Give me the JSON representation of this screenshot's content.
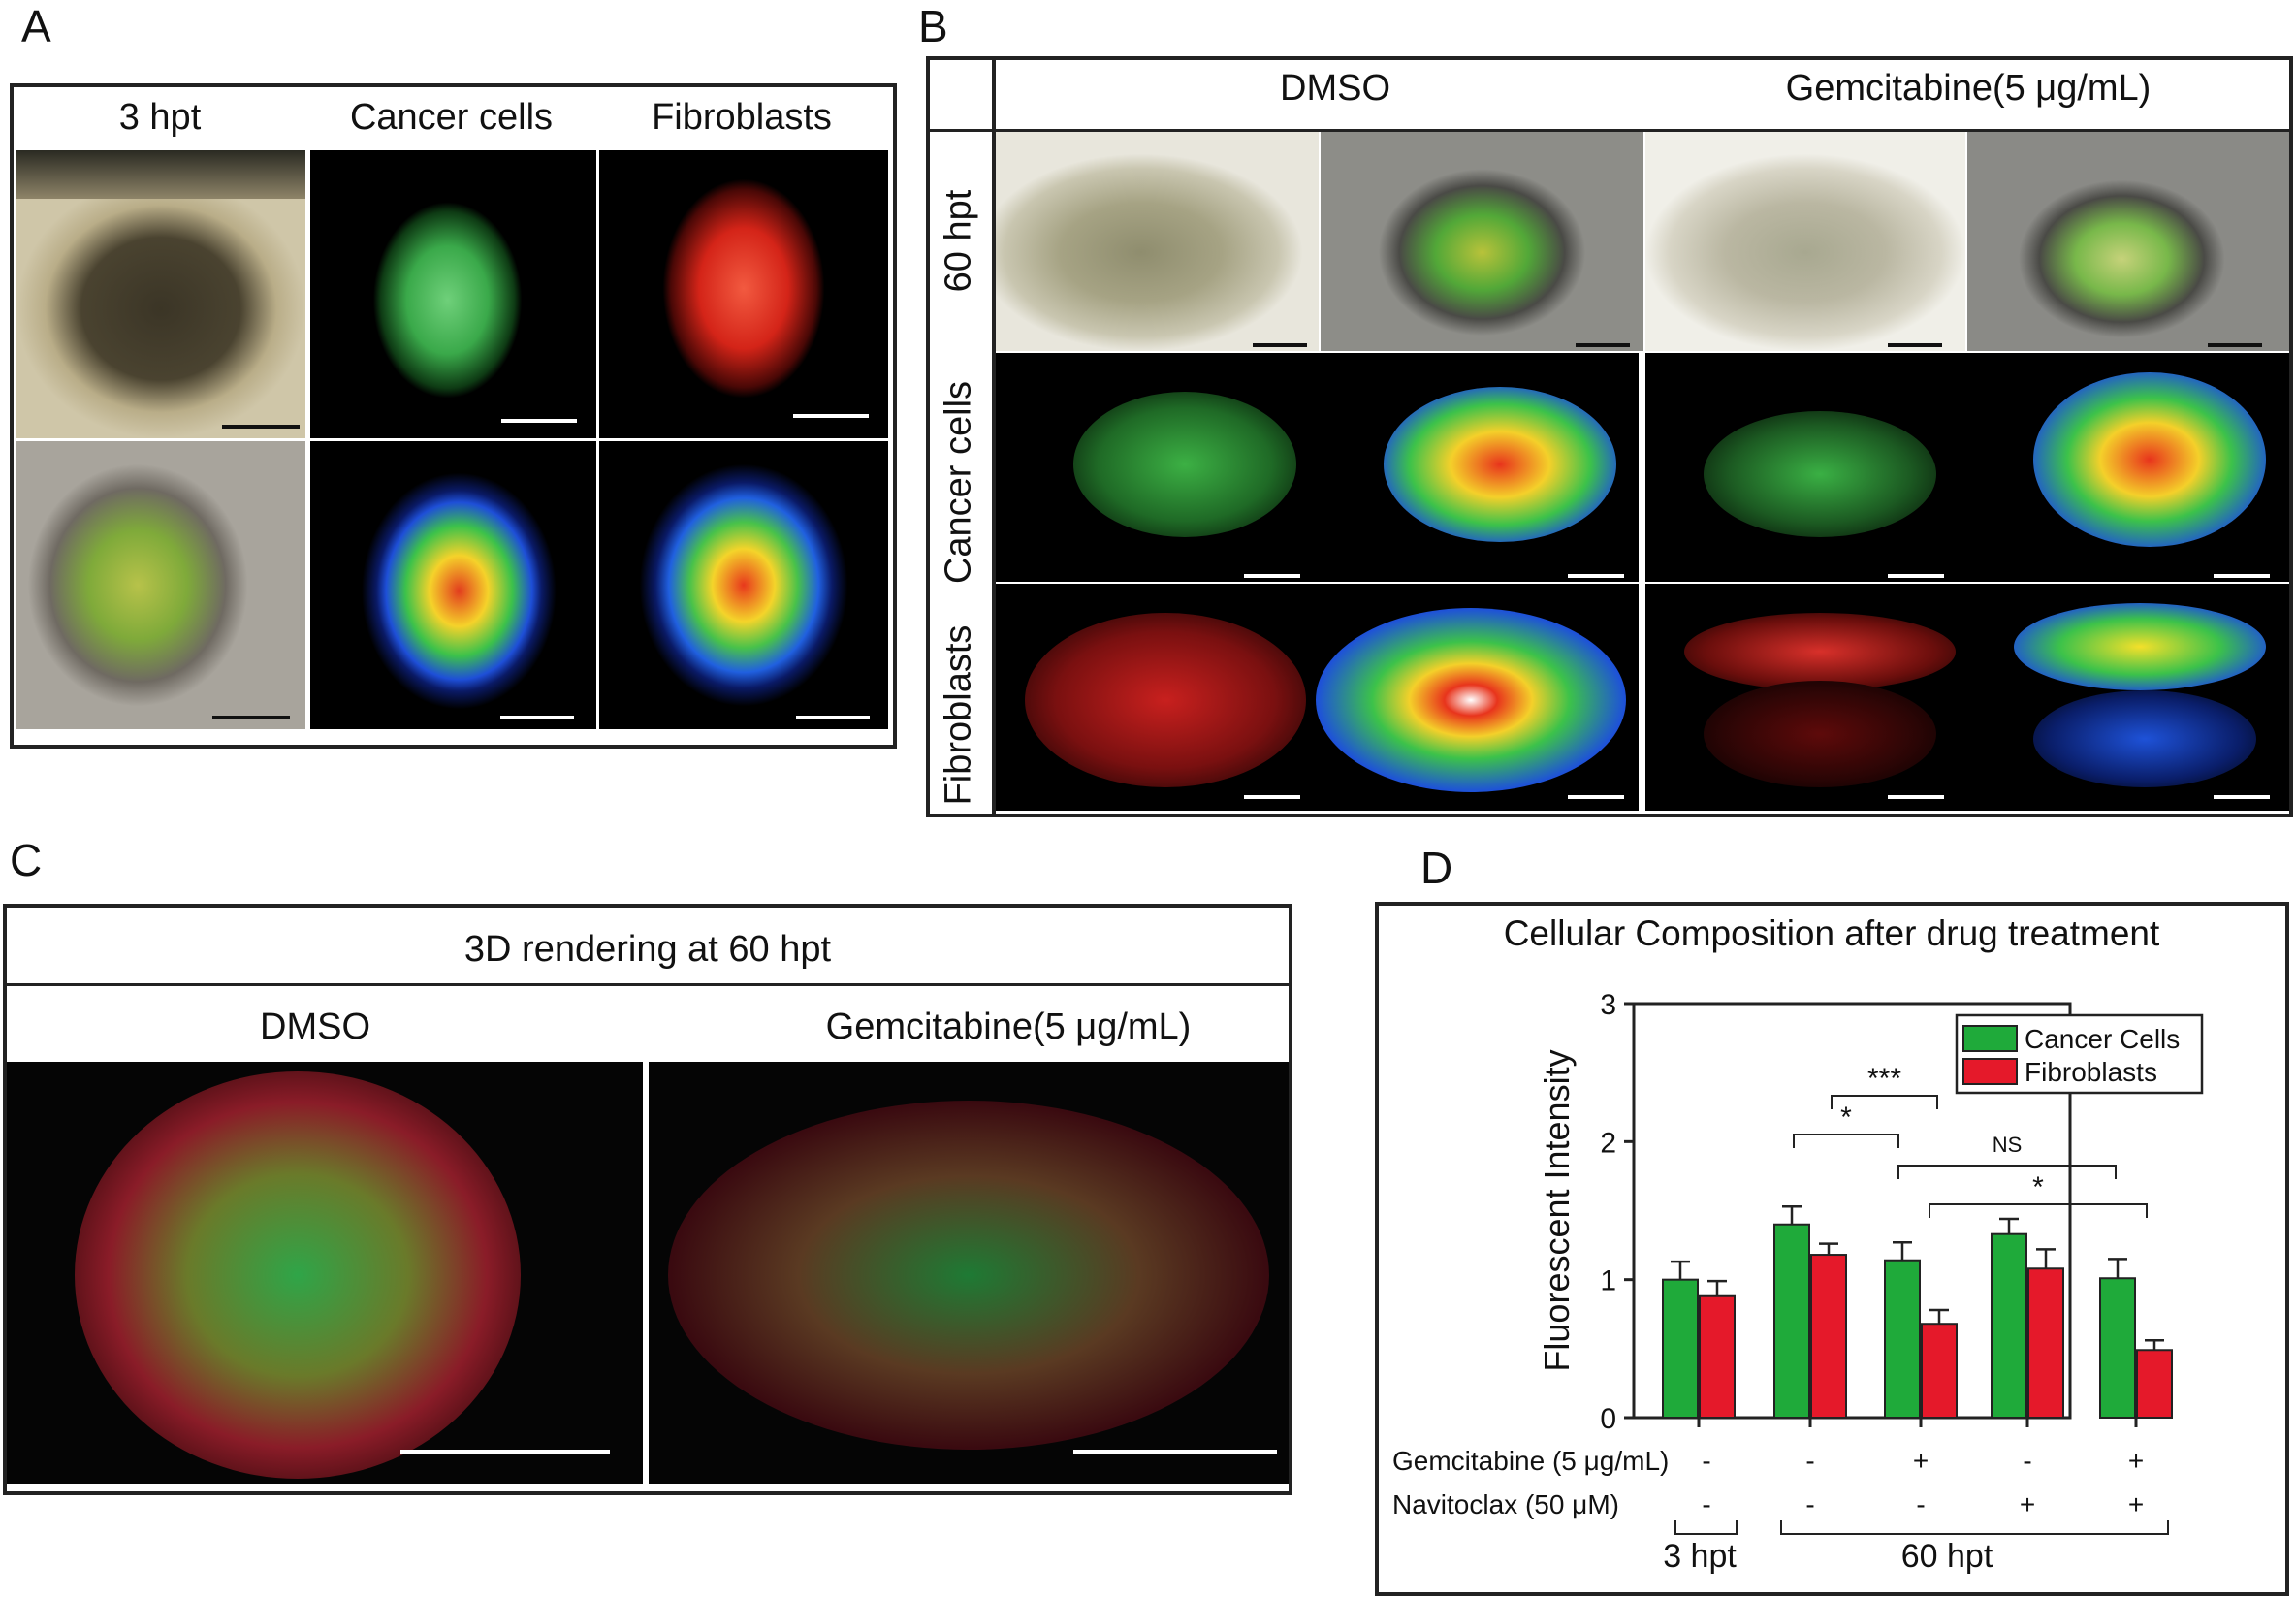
{
  "panel_letters": {
    "a": "A",
    "b": "B",
    "c": "C",
    "d": "D"
  },
  "panel_a": {
    "headers": [
      "3 hpt",
      "Cancer cells",
      "Fibroblasts"
    ]
  },
  "panel_b": {
    "col_headers": [
      "DMSO",
      "Gemcitabine(5 μg/mL)"
    ],
    "row_labels": [
      "60 hpt",
      "Cancer cells",
      "Fibroblasts"
    ]
  },
  "panel_c": {
    "title": "3D rendering at 60 hpt",
    "col_headers": [
      "DMSO",
      "Gemcitabine(5 μg/mL)"
    ]
  },
  "colors": {
    "cancer": "#1faa3a",
    "fibro": "#e5192a",
    "frame": "#222222"
  },
  "chart_data": {
    "type": "bar",
    "title": "Cellular Composition after drug treatment",
    "ylabel": "Fluorescent Intensity",
    "ylim": [
      0,
      3
    ],
    "yticks": [
      "0",
      "1",
      "2",
      "3"
    ],
    "legend": {
      "placement": "top-right",
      "entries": [
        "Cancer Cells",
        "Fibroblasts"
      ]
    },
    "series": [
      {
        "name": "Cancer Cells",
        "color": "#1faa3a",
        "values": [
          1.0,
          1.4,
          1.14,
          1.33,
          1.01
        ],
        "errors": [
          0.13,
          0.13,
          0.13,
          0.11,
          0.14
        ]
      },
      {
        "name": "Fibroblasts",
        "color": "#e5192a",
        "values": [
          0.88,
          1.18,
          0.68,
          1.08,
          0.49
        ],
        "errors": [
          0.11,
          0.08,
          0.1,
          0.14,
          0.07
        ]
      }
    ],
    "row_labels": [
      "Gemcitabine (5 μg/mL)",
      "Navitoclax (50 μM)"
    ],
    "gemcitabine": [
      "-",
      "-",
      "+",
      "-",
      "+"
    ],
    "navitoclax": [
      "-",
      "-",
      "-",
      "+",
      "+"
    ],
    "group_labels": [
      "3 hpt",
      "60 hpt"
    ],
    "significance": [
      "***",
      "*",
      "NS",
      "*"
    ]
  }
}
